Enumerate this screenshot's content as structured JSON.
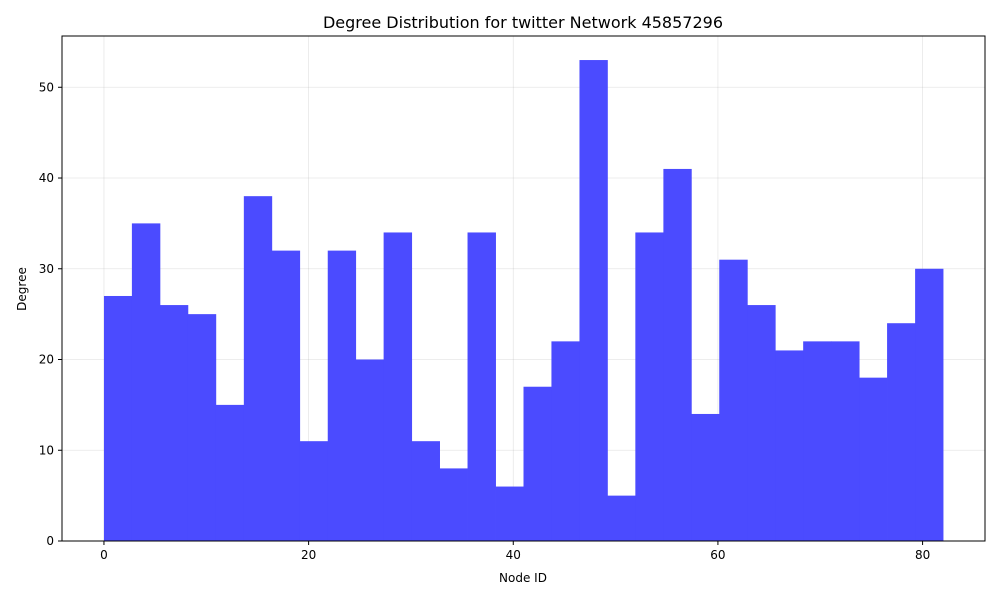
{
  "chart_data": {
    "type": "bar",
    "title": "Degree Distribution for twitter Network 45857296",
    "xlabel": "Node ID",
    "ylabel": "Degree",
    "xlim": [
      -4.1,
      86.1
    ],
    "ylim": [
      0,
      55.65
    ],
    "xticks": [
      0,
      20,
      40,
      60,
      80
    ],
    "yticks": [
      0,
      10,
      20,
      30,
      40,
      50
    ],
    "grid": true,
    "bar_color": "#4b4bff",
    "bins": [
      {
        "x0": 0.0,
        "x1": 2.73,
        "value": 27
      },
      {
        "x0": 2.73,
        "x1": 5.47,
        "value": 35
      },
      {
        "x0": 5.47,
        "x1": 8.2,
        "value": 26
      },
      {
        "x0": 8.2,
        "x1": 10.93,
        "value": 25
      },
      {
        "x0": 10.93,
        "x1": 13.67,
        "value": 15
      },
      {
        "x0": 13.67,
        "x1": 16.4,
        "value": 38
      },
      {
        "x0": 16.4,
        "x1": 19.13,
        "value": 32
      },
      {
        "x0": 19.13,
        "x1": 21.87,
        "value": 11
      },
      {
        "x0": 21.87,
        "x1": 24.6,
        "value": 32
      },
      {
        "x0": 24.6,
        "x1": 27.33,
        "value": 20
      },
      {
        "x0": 27.33,
        "x1": 30.07,
        "value": 34
      },
      {
        "x0": 30.07,
        "x1": 32.8,
        "value": 11
      },
      {
        "x0": 32.8,
        "x1": 35.53,
        "value": 8
      },
      {
        "x0": 35.53,
        "x1": 38.27,
        "value": 34
      },
      {
        "x0": 38.27,
        "x1": 41.0,
        "value": 6
      },
      {
        "x0": 41.0,
        "x1": 43.73,
        "value": 17
      },
      {
        "x0": 43.73,
        "x1": 46.47,
        "value": 22
      },
      {
        "x0": 46.47,
        "x1": 49.2,
        "value": 53
      },
      {
        "x0": 49.2,
        "x1": 51.93,
        "value": 5
      },
      {
        "x0": 51.93,
        "x1": 54.67,
        "value": 34
      },
      {
        "x0": 54.67,
        "x1": 57.4,
        "value": 41
      },
      {
        "x0": 57.4,
        "x1": 60.13,
        "value": 14
      },
      {
        "x0": 60.13,
        "x1": 62.87,
        "value": 31
      },
      {
        "x0": 62.87,
        "x1": 65.6,
        "value": 26
      },
      {
        "x0": 65.6,
        "x1": 68.33,
        "value": 21
      },
      {
        "x0": 68.33,
        "x1": 71.07,
        "value": 22
      },
      {
        "x0": 71.07,
        "x1": 73.8,
        "value": 22
      },
      {
        "x0": 73.8,
        "x1": 76.53,
        "value": 18
      },
      {
        "x0": 76.53,
        "x1": 79.27,
        "value": 24
      },
      {
        "x0": 79.27,
        "x1": 82.0,
        "value": 30
      }
    ]
  }
}
